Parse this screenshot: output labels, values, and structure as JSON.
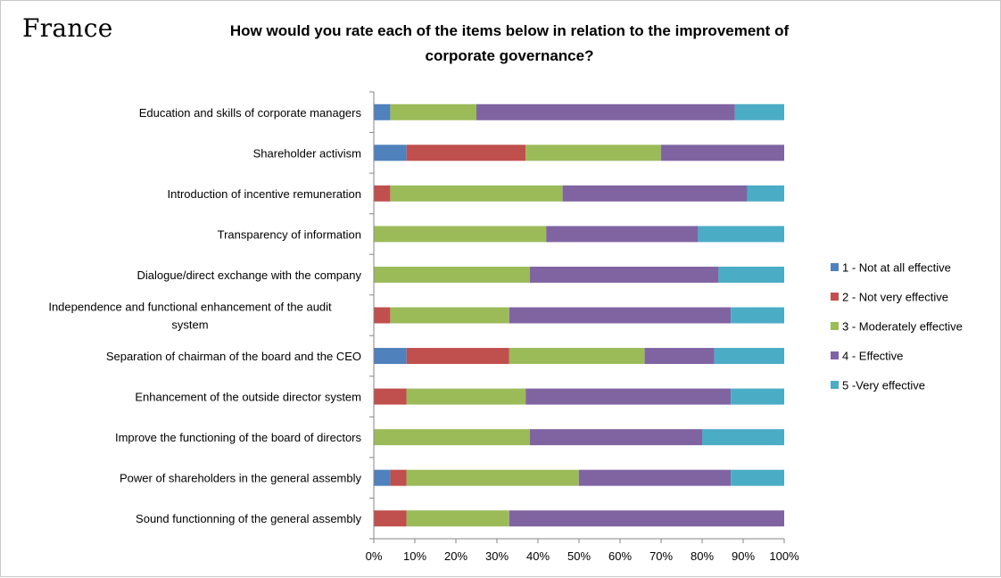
{
  "country": "France",
  "title_lines": [
    "How would you rate each of the items below in relation to the improvement of",
    "corporate governance?"
  ],
  "colors": {
    "series": [
      "#4f81bd",
      "#c0504d",
      "#9bbb59",
      "#8064a2",
      "#4bacc6"
    ],
    "axis": "#868686",
    "text": "#000000"
  },
  "chart_data": {
    "type": "bar",
    "orientation": "horizontal",
    "stacking": "percent",
    "title": "How would you rate each of the items below in relation to the improvement of corporate governance?",
    "xlim": [
      0,
      100
    ],
    "xticks": [
      "0%",
      "10%",
      "20%",
      "30%",
      "40%",
      "50%",
      "60%",
      "70%",
      "80%",
      "90%",
      "100%"
    ],
    "grid": false,
    "legend_position": "right",
    "categories": [
      "Education and skills of corporate managers",
      "Shareholder activism",
      "Introduction of incentive remuneration",
      "Transparency of information",
      "Dialogue/direct exchange with the company",
      "Independence and functional enhancement of the audit system",
      "Separation of chairman of the board and the CEO",
      "Enhancement of the outside director system",
      "Improve the functioning of the board of directors",
      "Power of shareholders in the general assembly",
      "Sound functionning of the general assembly"
    ],
    "category_label_lines": [
      [
        "Education and skills of corporate managers"
      ],
      [
        "Shareholder activism"
      ],
      [
        "Introduction of incentive remuneration"
      ],
      [
        "Transparency of information"
      ],
      [
        "Dialogue/direct exchange with the company"
      ],
      [
        "Independence and functional enhancement of the audit",
        "system"
      ],
      [
        "Separation of chairman of the board and the CEO"
      ],
      [
        "Enhancement of the outside director system"
      ],
      [
        "Improve the functioning of the board of directors"
      ],
      [
        "Power of shareholders in the general assembly"
      ],
      [
        "Sound functionning of the general assembly"
      ]
    ],
    "series": [
      {
        "name": "1 - Not at all effective",
        "values": [
          4,
          8,
          0,
          0,
          0,
          0,
          8,
          0,
          0,
          4,
          0
        ]
      },
      {
        "name": "2 - Not very effective",
        "values": [
          0,
          29,
          4,
          0,
          0,
          4,
          25,
          8,
          0,
          4,
          8
        ]
      },
      {
        "name": "3 - Moderately effective",
        "values": [
          21,
          33,
          42,
          42,
          38,
          29,
          33,
          29,
          38,
          42,
          25
        ]
      },
      {
        "name": "4 - Effective",
        "values": [
          63,
          30,
          45,
          37,
          46,
          54,
          17,
          50,
          42,
          37,
          67
        ]
      },
      {
        "name": "5 -Very effective",
        "values": [
          12,
          0,
          9,
          21,
          16,
          13,
          17,
          13,
          20,
          13,
          0
        ]
      }
    ]
  }
}
